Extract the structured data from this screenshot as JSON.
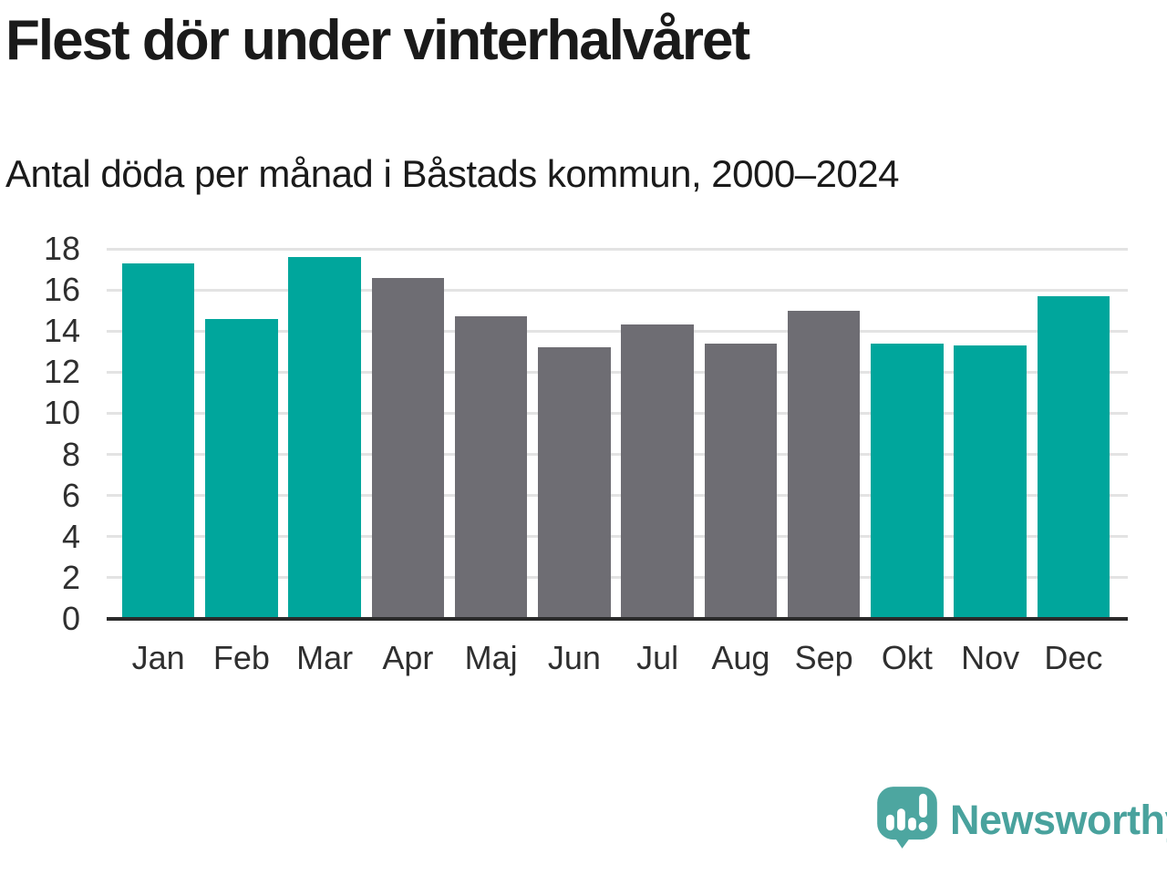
{
  "chart_data": {
    "type": "bar",
    "title": "Flest dör under vinterhalvåret",
    "subtitle": "Antal döda per månad i Båstads kommun, 2000–2024",
    "categories": [
      "Jan",
      "Feb",
      "Mar",
      "Apr",
      "Maj",
      "Jun",
      "Jul",
      "Aug",
      "Sep",
      "Okt",
      "Nov",
      "Dec"
    ],
    "values": [
      17.3,
      14.6,
      17.6,
      16.6,
      14.7,
      13.2,
      14.3,
      13.4,
      15.0,
      13.4,
      13.3,
      15.7
    ],
    "bar_seasons": [
      "winter",
      "winter",
      "winter",
      "summer",
      "summer",
      "summer",
      "summer",
      "summer",
      "summer",
      "winter",
      "winter",
      "winter"
    ],
    "season_colors": {
      "winter": "#00a69c",
      "summer": "#6e6d73"
    },
    "xlabel": "",
    "ylabel": "",
    "ylim": [
      0,
      18
    ],
    "yticks": [
      0,
      2,
      4,
      6,
      8,
      10,
      12,
      14,
      16,
      18
    ],
    "grid": true,
    "legend": "none",
    "colors": {
      "title_text": "#1a1a1a",
      "tick_text": "#2f2f2f",
      "gridline": "#e3e3e3",
      "axis_line": "#2b2b2b",
      "background": "#ffffff"
    }
  },
  "branding": {
    "logo_text": "Newsworthy",
    "logo_icon": "newsworthy-speech-bubble-bar-chart-icon",
    "icon_color": "#4da6a0",
    "text_color": "#49a29d"
  }
}
